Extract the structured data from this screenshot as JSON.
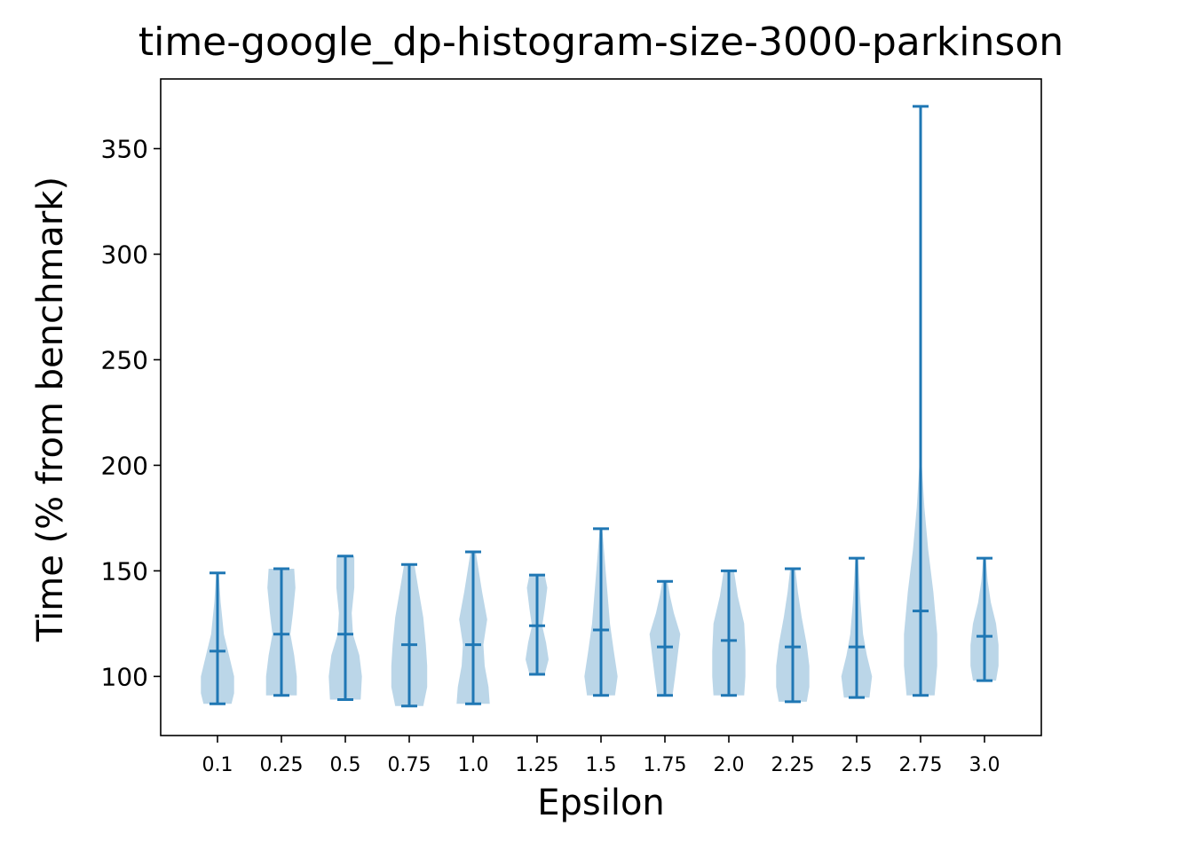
{
  "chart_data": {
    "type": "violin",
    "title": "time-google_dp-histogram-size-3000-parkinson",
    "xlabel": "Epsilon",
    "ylabel": "Time (% from benchmark)",
    "ylim": [
      72,
      383
    ],
    "yticks": [
      100,
      150,
      200,
      250,
      300,
      350
    ],
    "grid": false,
    "colors": {
      "body": "#1f77b4",
      "body_alpha": 0.3,
      "lines": "#1f77b4"
    },
    "categories": [
      "0.1",
      "0.25",
      "0.5",
      "0.75",
      "1.0",
      "1.25",
      "1.5",
      "1.75",
      "2.0",
      "2.25",
      "2.5",
      "2.75",
      "3.0"
    ],
    "violins": [
      {
        "x": "0.1",
        "min": 87,
        "mean": 112,
        "max": 149,
        "widths": [
          [
            87,
            0.22
          ],
          [
            92,
            0.26
          ],
          [
            100,
            0.26
          ],
          [
            110,
            0.18
          ],
          [
            120,
            0.1
          ],
          [
            135,
            0.05
          ],
          [
            149,
            0.02
          ]
        ]
      },
      {
        "x": "0.25",
        "min": 91,
        "mean": 120,
        "max": 151,
        "widths": [
          [
            91,
            0.24
          ],
          [
            100,
            0.24
          ],
          [
            110,
            0.2
          ],
          [
            120,
            0.14
          ],
          [
            130,
            0.18
          ],
          [
            142,
            0.22
          ],
          [
            151,
            0.2
          ]
        ]
      },
      {
        "x": "0.5",
        "min": 89,
        "mean": 120,
        "max": 157,
        "widths": [
          [
            89,
            0.24
          ],
          [
            100,
            0.26
          ],
          [
            110,
            0.22
          ],
          [
            120,
            0.12
          ],
          [
            130,
            0.1
          ],
          [
            142,
            0.14
          ],
          [
            157,
            0.14
          ]
        ]
      },
      {
        "x": "0.75",
        "min": 86,
        "mean": 115,
        "max": 153,
        "widths": [
          [
            86,
            0.22
          ],
          [
            95,
            0.28
          ],
          [
            105,
            0.28
          ],
          [
            115,
            0.26
          ],
          [
            128,
            0.22
          ],
          [
            142,
            0.14
          ],
          [
            153,
            0.08
          ]
        ]
      },
      {
        "x": "1.0",
        "min": 87,
        "mean": 115,
        "max": 159,
        "widths": [
          [
            87,
            0.26
          ],
          [
            95,
            0.24
          ],
          [
            105,
            0.18
          ],
          [
            115,
            0.16
          ],
          [
            127,
            0.22
          ],
          [
            140,
            0.14
          ],
          [
            159,
            0.04
          ]
        ]
      },
      {
        "x": "1.25",
        "min": 101,
        "mean": 124,
        "max": 148,
        "widths": [
          [
            101,
            0.12
          ],
          [
            108,
            0.18
          ],
          [
            116,
            0.14
          ],
          [
            124,
            0.08
          ],
          [
            132,
            0.12
          ],
          [
            142,
            0.16
          ],
          [
            148,
            0.12
          ]
        ]
      },
      {
        "x": "1.5",
        "min": 91,
        "mean": 122,
        "max": 170,
        "widths": [
          [
            91,
            0.22
          ],
          [
            100,
            0.26
          ],
          [
            112,
            0.2
          ],
          [
            125,
            0.14
          ],
          [
            140,
            0.1
          ],
          [
            155,
            0.06
          ],
          [
            170,
            0.02
          ]
        ]
      },
      {
        "x": "1.75",
        "min": 91,
        "mean": 114,
        "max": 145,
        "widths": [
          [
            91,
            0.12
          ],
          [
            100,
            0.16
          ],
          [
            110,
            0.2
          ],
          [
            120,
            0.24
          ],
          [
            130,
            0.14
          ],
          [
            138,
            0.08
          ],
          [
            145,
            0.04
          ]
        ]
      },
      {
        "x": "2.0",
        "min": 91,
        "mean": 117,
        "max": 150,
        "widths": [
          [
            91,
            0.24
          ],
          [
            100,
            0.26
          ],
          [
            112,
            0.26
          ],
          [
            125,
            0.24
          ],
          [
            138,
            0.14
          ],
          [
            150,
            0.08
          ]
        ]
      },
      {
        "x": "2.25",
        "min": 88,
        "mean": 114,
        "max": 151,
        "widths": [
          [
            88,
            0.22
          ],
          [
            95,
            0.26
          ],
          [
            105,
            0.26
          ],
          [
            115,
            0.22
          ],
          [
            128,
            0.14
          ],
          [
            140,
            0.08
          ],
          [
            151,
            0.04
          ]
        ]
      },
      {
        "x": "2.5",
        "min": 90,
        "mean": 114,
        "max": 156,
        "widths": [
          [
            90,
            0.2
          ],
          [
            100,
            0.24
          ],
          [
            110,
            0.16
          ],
          [
            120,
            0.1
          ],
          [
            135,
            0.06
          ],
          [
            156,
            0.02
          ]
        ]
      },
      {
        "x": "2.75",
        "min": 91,
        "mean": 131,
        "max": 370,
        "widths": [
          [
            91,
            0.22
          ],
          [
            105,
            0.26
          ],
          [
            120,
            0.26
          ],
          [
            140,
            0.2
          ],
          [
            160,
            0.12
          ],
          [
            180,
            0.06
          ],
          [
            200,
            0.02
          ],
          [
            230,
            0.006
          ],
          [
            370,
            0.002
          ]
        ]
      },
      {
        "x": "3.0",
        "min": 98,
        "mean": 119,
        "max": 156,
        "widths": [
          [
            98,
            0.18
          ],
          [
            105,
            0.22
          ],
          [
            115,
            0.22
          ],
          [
            125,
            0.18
          ],
          [
            135,
            0.1
          ],
          [
            145,
            0.05
          ],
          [
            156,
            0.02
          ]
        ]
      }
    ]
  }
}
